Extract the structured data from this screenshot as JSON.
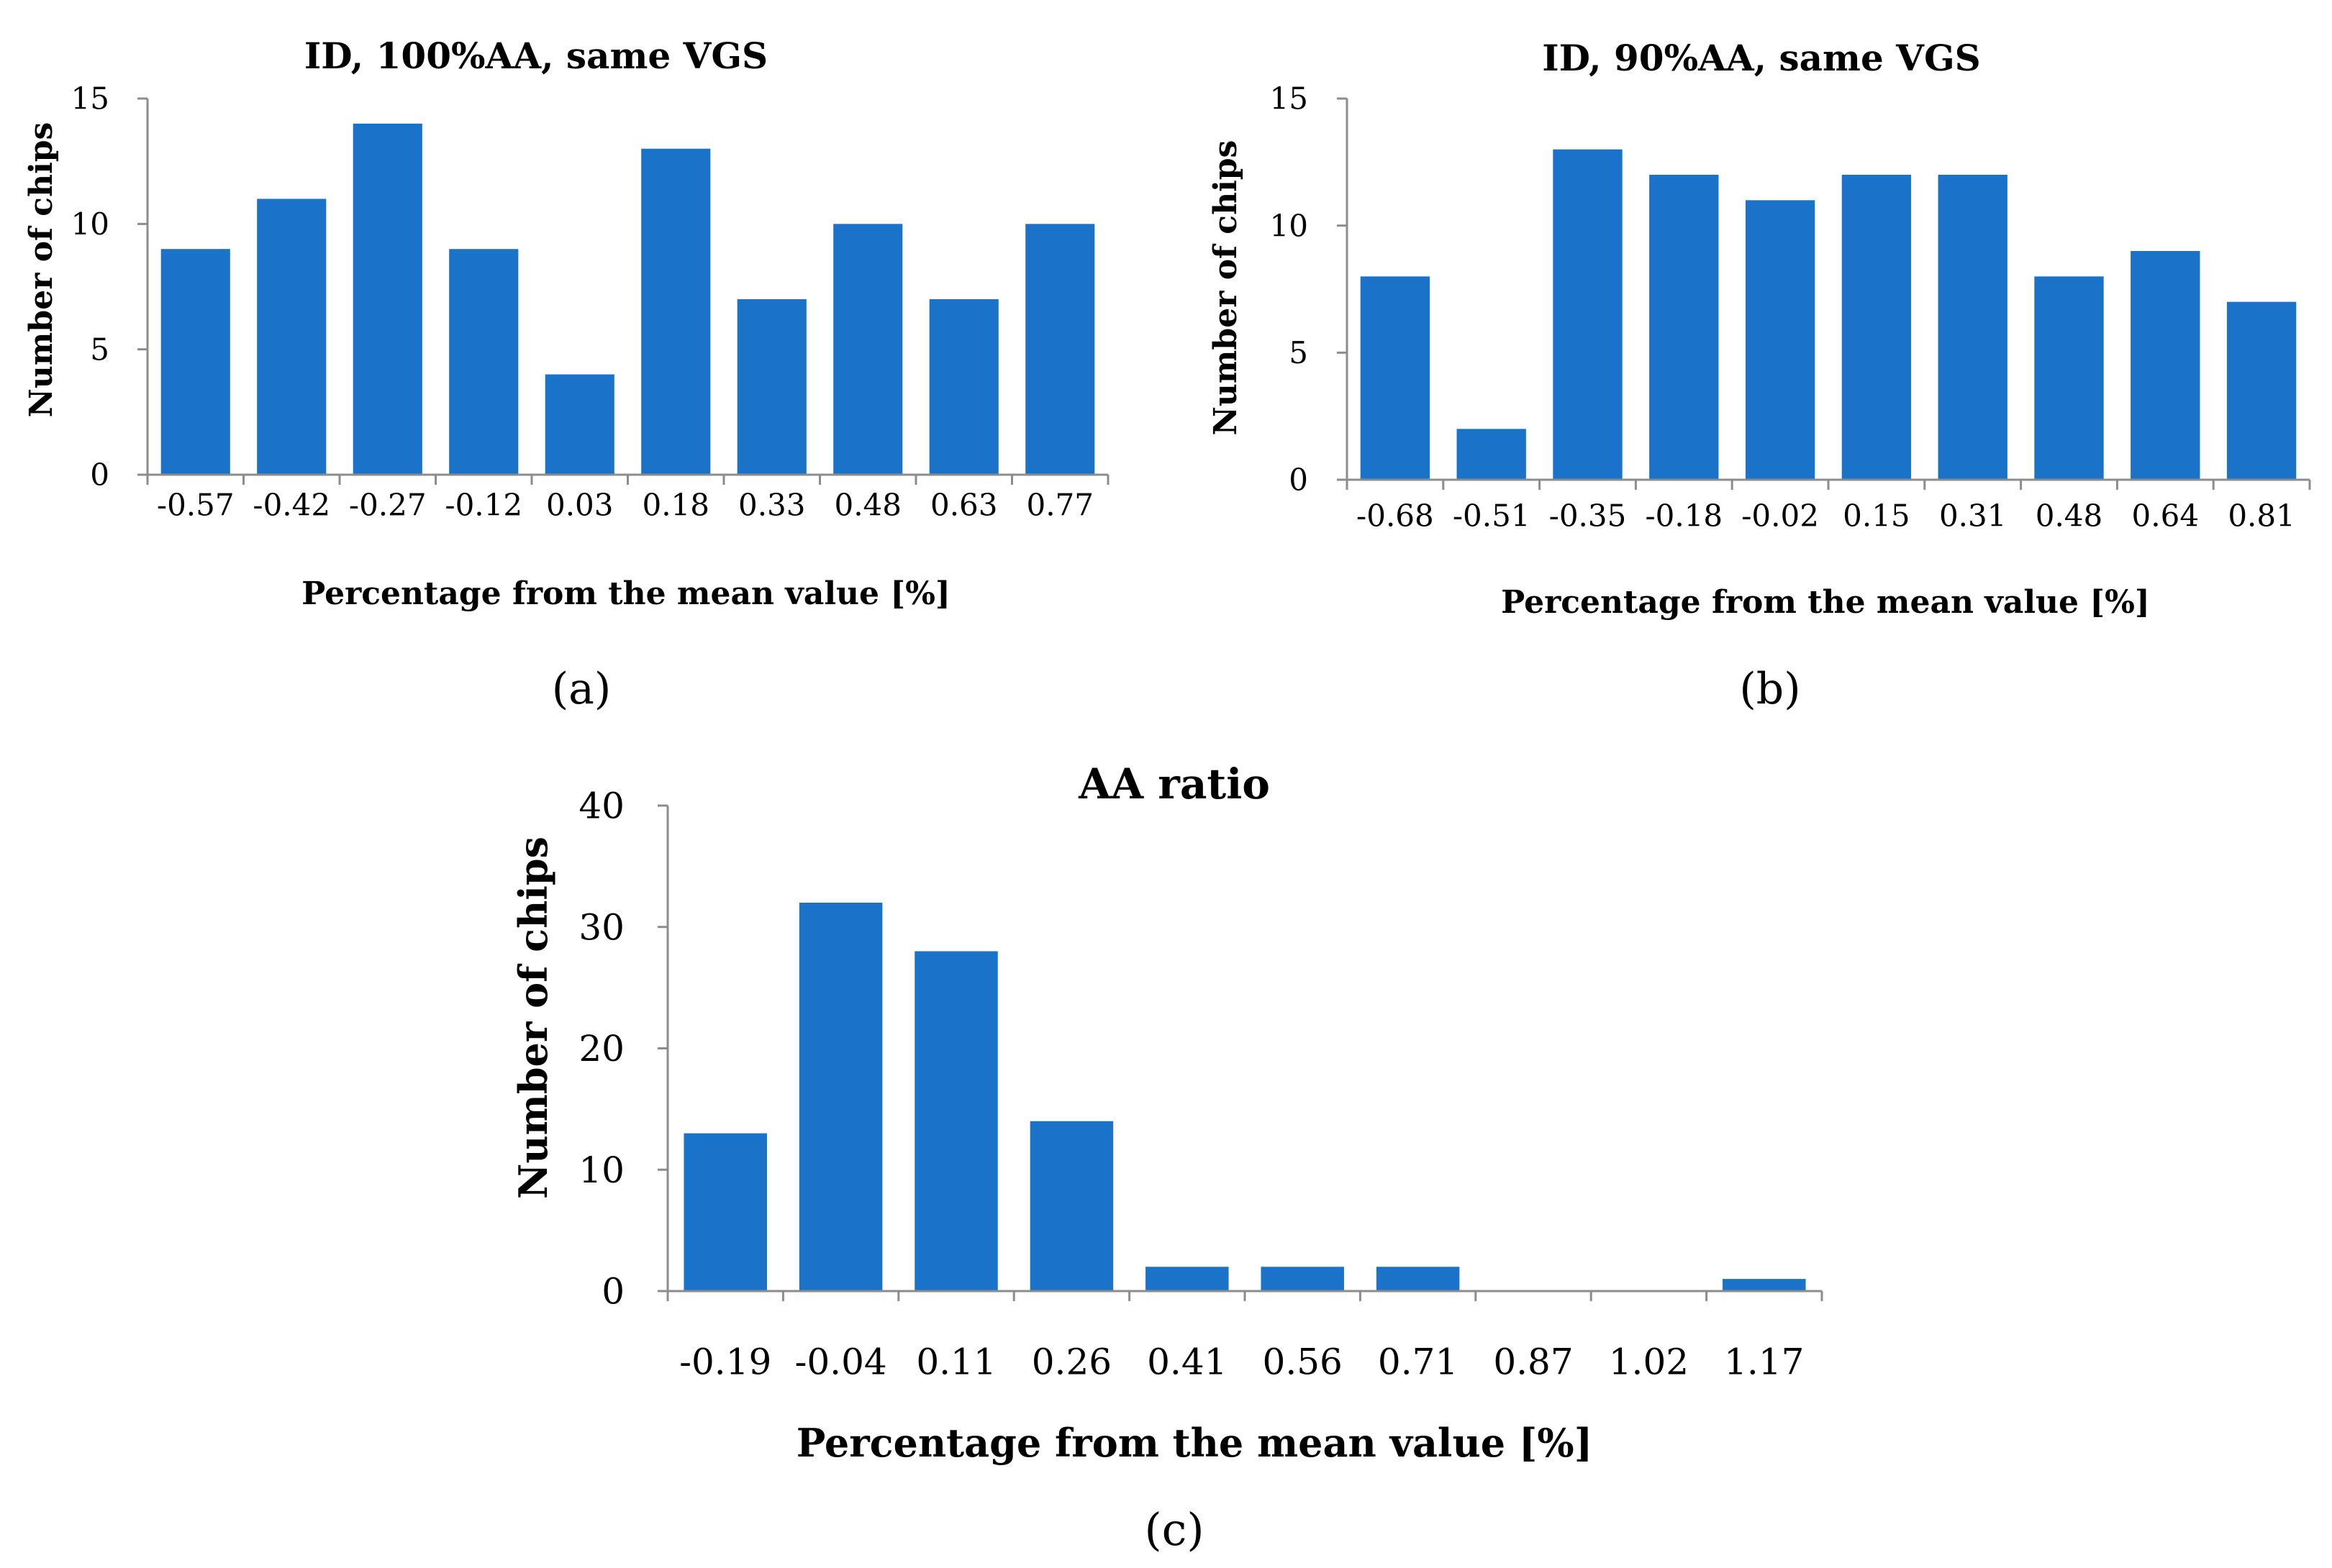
{
  "colors": {
    "bar": "#1a72c9",
    "axis": "#8c8c8c",
    "text": "#000000"
  },
  "chart_data": [
    {
      "type": "bar",
      "title": "ID, 100%AA, same VGS",
      "xlabel": "Percentage from the mean value [%]",
      "ylabel": "Number of chips",
      "panel_label": "(a)",
      "categories": [
        "-0.57",
        "-0.42",
        "-0.27",
        "-0.12",
        "0.03",
        "0.18",
        "0.33",
        "0.48",
        "0.63",
        "0.77"
      ],
      "values": [
        9,
        11,
        14,
        9,
        4,
        13,
        7,
        10,
        7,
        10
      ],
      "ylim": [
        0,
        15
      ],
      "yticks": [
        "0",
        "5",
        "10",
        "15"
      ],
      "grid": false
    },
    {
      "type": "bar",
      "title": "ID, 90%AA, same VGS",
      "xlabel": "Percentage from the mean value [%]",
      "ylabel": "Number of chips",
      "panel_label": "(b)",
      "categories": [
        "-0.68",
        "-0.51",
        "-0.35",
        "-0.18",
        "-0.02",
        "0.15",
        "0.31",
        "0.48",
        "0.64",
        "0.81"
      ],
      "values": [
        8,
        2,
        13,
        12,
        11,
        12,
        12,
        8,
        9,
        7
      ],
      "ylim": [
        0,
        15
      ],
      "yticks": [
        "0",
        "5",
        "10",
        "15"
      ],
      "grid": false
    },
    {
      "type": "bar",
      "title": "AA ratio",
      "xlabel": "Percentage from the mean value [%]",
      "ylabel": "Number of chips",
      "panel_label": "(c)",
      "categories": [
        "-0.19",
        "-0.04",
        "0.11",
        "0.26",
        "0.41",
        "0.56",
        "0.71",
        "0.87",
        "1.02",
        "1.17"
      ],
      "values": [
        13,
        32,
        28,
        14,
        2,
        2,
        2,
        0,
        0,
        1
      ],
      "ylim": [
        0,
        40
      ],
      "yticks": [
        "0",
        "10",
        "20",
        "30",
        "40"
      ],
      "grid": false
    }
  ]
}
